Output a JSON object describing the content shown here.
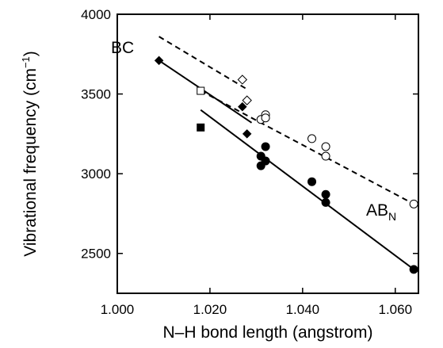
{
  "chart_data": {
    "type": "scatter",
    "xlabel": "N–H bond length (angstrom)",
    "ylabel_main": "Vibrational frequency (cm",
    "ylabel_sup": "−1",
    "ylabel_close": ")",
    "xlim": [
      1.0,
      1.065
    ],
    "ylim": [
      2250,
      4000
    ],
    "x_ticks": [
      1.0,
      1.02,
      1.04,
      1.06
    ],
    "x_tick_labels": [
      "1.000",
      "1.020",
      "1.040",
      "1.060"
    ],
    "y_ticks": [
      2500,
      3000,
      3500,
      4000
    ],
    "y_tick_labels": [
      "2500",
      "3000",
      "3500",
      "4000"
    ],
    "grid": false,
    "annotations": {
      "bc": "BC",
      "ab_main": "AB",
      "ab_sub": "N"
    },
    "series": [
      {
        "marker": "filled-circle",
        "points": [
          [
            1.031,
            3050
          ],
          [
            1.031,
            3110
          ],
          [
            1.032,
            3080
          ],
          [
            1.032,
            3170
          ],
          [
            1.042,
            2950
          ],
          [
            1.045,
            2870
          ],
          [
            1.045,
            2820
          ],
          [
            1.064,
            2400
          ]
        ]
      },
      {
        "marker": "open-circle",
        "points": [
          [
            1.031,
            3340
          ],
          [
            1.032,
            3370
          ],
          [
            1.032,
            3350
          ],
          [
            1.042,
            3220
          ],
          [
            1.045,
            3170
          ],
          [
            1.045,
            3110
          ],
          [
            1.064,
            2810
          ]
        ]
      },
      {
        "marker": "filled-diamond",
        "points": [
          [
            1.009,
            3710
          ],
          [
            1.027,
            3420
          ],
          [
            1.028,
            3250
          ]
        ]
      },
      {
        "marker": "open-diamond",
        "points": [
          [
            1.027,
            3590
          ],
          [
            1.028,
            3460
          ]
        ]
      },
      {
        "marker": "filled-square",
        "points": [
          [
            1.018,
            3290
          ]
        ]
      },
      {
        "marker": "open-square",
        "points": [
          [
            1.018,
            3520
          ]
        ]
      }
    ],
    "lines": [
      {
        "style": "dashed",
        "points": [
          [
            1.009,
            3860
          ],
          [
            1.028,
            3530
          ]
        ]
      },
      {
        "style": "dashed",
        "points": [
          [
            1.018,
            3520
          ],
          [
            1.064,
            2810
          ]
        ]
      },
      {
        "style": "solid",
        "points": [
          [
            1.009,
            3710
          ],
          [
            1.029,
            3320
          ]
        ]
      },
      {
        "style": "solid",
        "points": [
          [
            1.018,
            3400
          ],
          [
            1.064,
            2400
          ]
        ]
      }
    ]
  }
}
